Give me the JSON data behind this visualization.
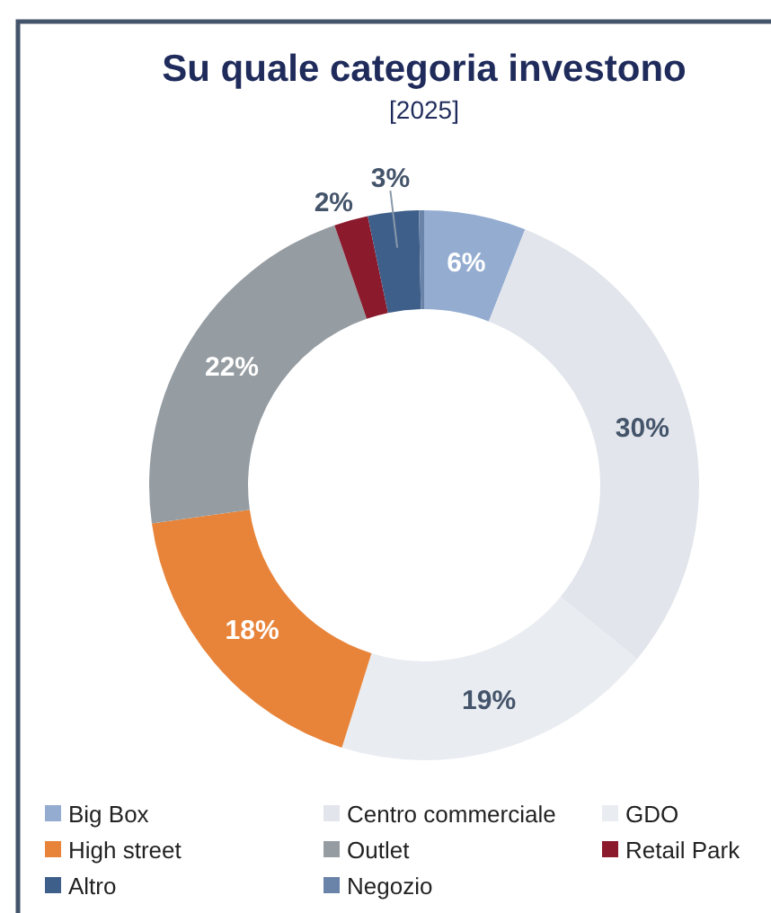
{
  "chart_data": {
    "type": "donut",
    "title": "Su quale categoria investono",
    "subtitle": "[2025]",
    "categories": [
      "Big Box",
      "Centro commerciale",
      "GDO",
      "High street",
      "Outlet",
      "Retail Park",
      "Altro",
      "Negozio"
    ],
    "values": [
      6,
      30,
      19,
      18,
      22,
      2,
      3,
      0.3
    ],
    "colors": [
      "#93acd0",
      "#e2e5eb",
      "#e9ecf1",
      "#e8843a",
      "#959ca2",
      "#8a1a2c",
      "#3e5f8a",
      "#6a83a8"
    ],
    "value_labels": [
      "6%",
      "30%",
      "19%",
      "18%",
      "22%",
      "2%",
      "3%",
      null
    ],
    "legend": "bottom"
  }
}
